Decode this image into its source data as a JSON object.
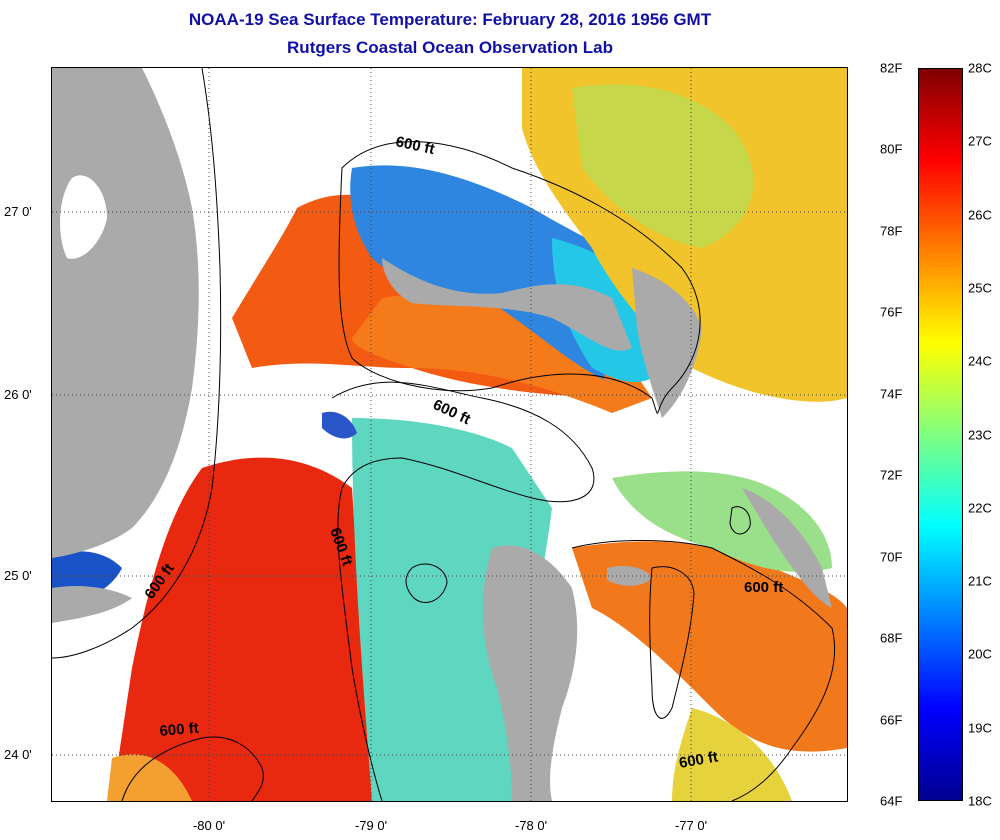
{
  "title": {
    "line1": "NOAA-19 Sea Surface Temperature:  February 28, 2016 1956 GMT",
    "line2": "Rutgers Coastal Ocean Observation Lab"
  },
  "map": {
    "longitude_labels": [
      "-80 0'",
      "-79 0'",
      "-78 0'",
      "-77 0'"
    ],
    "latitude_labels": [
      "27 0'",
      "26 0'",
      "25 0'",
      "24 0'"
    ],
    "contour_label": "600 ft",
    "land_color": "#aaaaaa",
    "cloud_color": "#ffffff"
  },
  "colorbar": {
    "fahrenheit_labels": [
      "82F",
      "80F",
      "78F",
      "76F",
      "74F",
      "72F",
      "70F",
      "68F",
      "66F",
      "64F"
    ],
    "celsius_labels": [
      "28C",
      "27C",
      "26C",
      "25C",
      "24C",
      "23C",
      "22C",
      "21C",
      "20C",
      "19C",
      "18C"
    ],
    "colors": [
      "#7f0000",
      "#ff0000",
      "#ff8000",
      "#ffff00",
      "#80ff80",
      "#00ffff",
      "#0080ff",
      "#0000ff",
      "#00008f"
    ]
  }
}
